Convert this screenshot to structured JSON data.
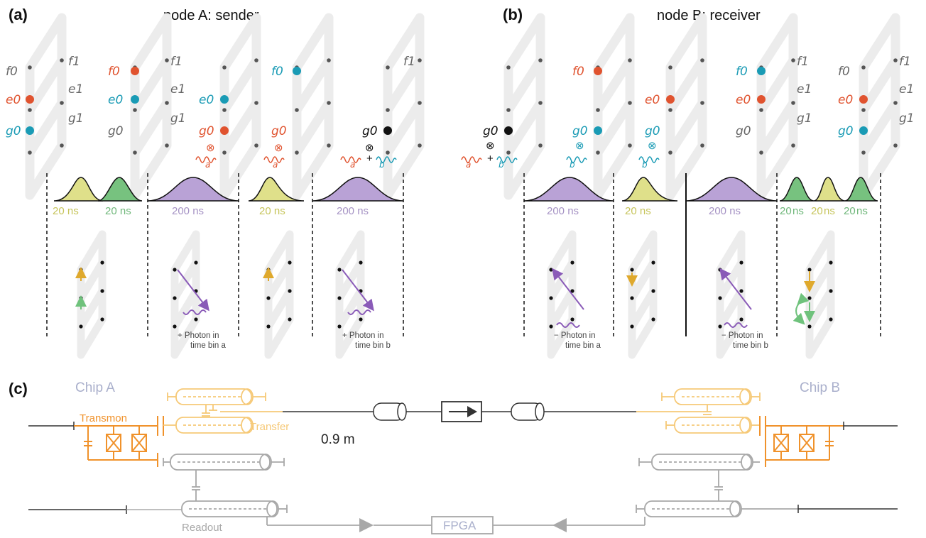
{
  "panels": {
    "a": {
      "label": "(a)",
      "title": "node A: sender"
    },
    "b": {
      "label": "(b)",
      "title": "node B: receiver"
    },
    "c": {
      "label": "(c)"
    }
  },
  "levels": {
    "f0": "f0",
    "e0": "e0",
    "g0": "g0",
    "f1": "f1",
    "e1": "e1",
    "g1": "g1"
  },
  "photon_bins": {
    "a": "a",
    "b": "b"
  },
  "pulses": {
    "p20": "20 ns",
    "p200": "200 ns",
    "p20_short": "20",
    "ns": "ns"
  },
  "photon_labels": {
    "plus_a_1": "+ Photon in",
    "plus_a_2": "time bin a",
    "plus_b_1": "+ Photon in",
    "plus_b_2": "time bin b",
    "minus_a_1": "− Photon in",
    "minus_a_2": "time bin a",
    "minus_b_1": "− Photon in",
    "minus_b_2": "time bin b"
  },
  "circuit": {
    "chip_a": "Chip A",
    "chip_b": "Chip B",
    "transmon": "Transmon",
    "transfer": "Transfer",
    "cable_length": "0.9 m",
    "readout": "Readout",
    "fpga": "FPGA"
  },
  "colors": {
    "orange_red": "#e0532f",
    "teal": "#1a9bb5",
    "yellow_pulse": "#dfe08a",
    "green_pulse": "#77c27f",
    "purple_pulse": "#b9a2d6",
    "arrow_yellow": "#dfa92d",
    "arrow_green": "#6fc27c",
    "arrow_purple": "#8a5bb8",
    "transmon_orange": "#f0922b",
    "transfer_yellow": "#f6c977",
    "readout_gray": "#a8a8a8"
  }
}
